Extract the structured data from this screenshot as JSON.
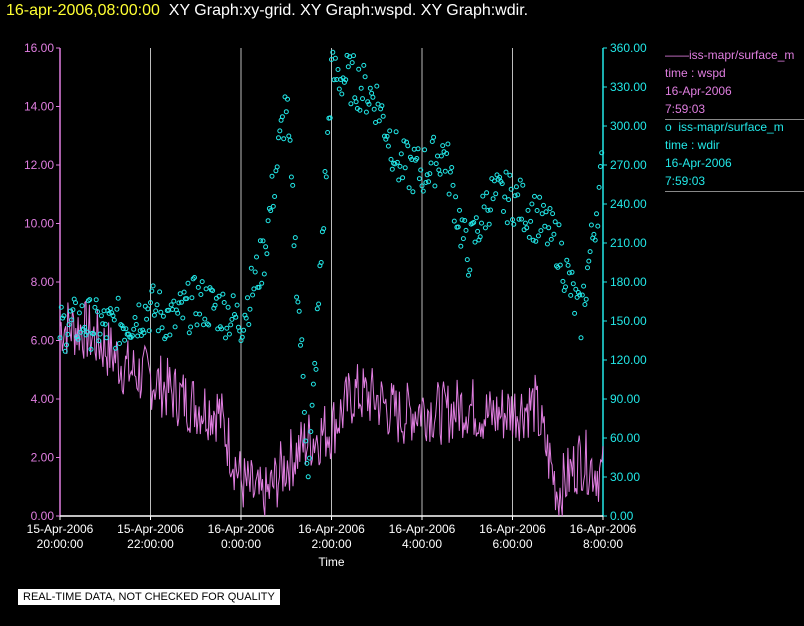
{
  "header": {
    "date": "16-apr-2006,08:00:00",
    "graphs": "XY Graph:xy-grid.  XY Graph:wspd.  XY Graph:wdir."
  },
  "notice": "REAL-TIME DATA, NOT CHECKED FOR QUALITY",
  "legend": [
    {
      "marker": "——",
      "series": "iss-mapr/surface_m",
      "field": "time : wspd",
      "date": "16-Apr-2006",
      "time": "7:59:03",
      "color": "#e07ee0"
    },
    {
      "marker": "o",
      "series": "iss-mapr/surface_m",
      "field": "time : wdir",
      "date": "16-Apr-2006",
      "time": "7:59:03",
      "color": "#22e8e8"
    }
  ],
  "chart_data": {
    "type": "line",
    "title": "",
    "xlabel": "Time",
    "ylabel": "",
    "xlim": [
      "15-Apr-2006 20:00:00",
      "16-Apr-2006 08:00:00"
    ],
    "xticks": [
      {
        "date": "15-Apr-2006",
        "time": "20:00:00"
      },
      {
        "date": "15-Apr-2006",
        "time": "22:00:00"
      },
      {
        "date": "16-Apr-2006",
        "time": "0:00:00"
      },
      {
        "date": "16-Apr-2006",
        "time": "2:00:00"
      },
      {
        "date": "16-Apr-2006",
        "time": "4:00:00"
      },
      {
        "date": "16-Apr-2006",
        "time": "6:00:00"
      },
      {
        "date": "16-Apr-2006",
        "time": "8:00:00"
      }
    ],
    "y_left": {
      "ylim": [
        0,
        16
      ],
      "ticks": [
        "0.00",
        "2.00",
        "4.00",
        "6.00",
        "8.00",
        "10.00",
        "12.00",
        "14.00",
        "16.00"
      ],
      "color": "#e07ee0"
    },
    "y_right": {
      "ylim": [
        0,
        360
      ],
      "ticks": [
        "0.00",
        "30.00",
        "60.00",
        "90.00",
        "120.00",
        "150.00",
        "180.00",
        "210.00",
        "240.00",
        "270.00",
        "300.00",
        "330.00",
        "360.00"
      ],
      "color": "#22e8e8"
    },
    "grid": "vertical",
    "series": [
      {
        "name": "wspd",
        "axis": "left",
        "style": "line",
        "color": "#e07ee0",
        "x_hours": [
          0,
          0.5,
          1,
          1.5,
          2,
          2.5,
          3,
          3.5,
          4,
          4.5,
          5,
          5.5,
          6,
          6.5,
          7,
          7.5,
          8,
          8.5,
          9,
          9.5,
          10,
          10.5,
          11,
          11.5,
          12
        ],
        "y": [
          6.5,
          6.4,
          5.8,
          5.0,
          4.7,
          4.2,
          3.8,
          3.6,
          1.2,
          0.5,
          1.8,
          2.6,
          3.0,
          4.2,
          4.0,
          3.4,
          3.7,
          3.5,
          3.8,
          3.4,
          3.6,
          3.8,
          0.8,
          2.0,
          1.4
        ]
      },
      {
        "name": "wdir",
        "axis": "right",
        "style": "markers",
        "color": "#22e8e8",
        "x_hours": [
          0,
          0.5,
          1,
          1.5,
          2,
          2.5,
          3,
          3.5,
          4,
          4.5,
          5,
          5.5,
          6,
          6.5,
          7,
          7.5,
          8,
          8.5,
          9,
          9.5,
          10,
          10.5,
          11,
          11.5,
          12
        ],
        "y": [
          145,
          150,
          145,
          150,
          160,
          150,
          165,
          160,
          150,
          200,
          320,
          30,
          340,
          335,
          320,
          270,
          265,
          280,
          200,
          245,
          245,
          230,
          210,
          150,
          270
        ]
      }
    ]
  }
}
